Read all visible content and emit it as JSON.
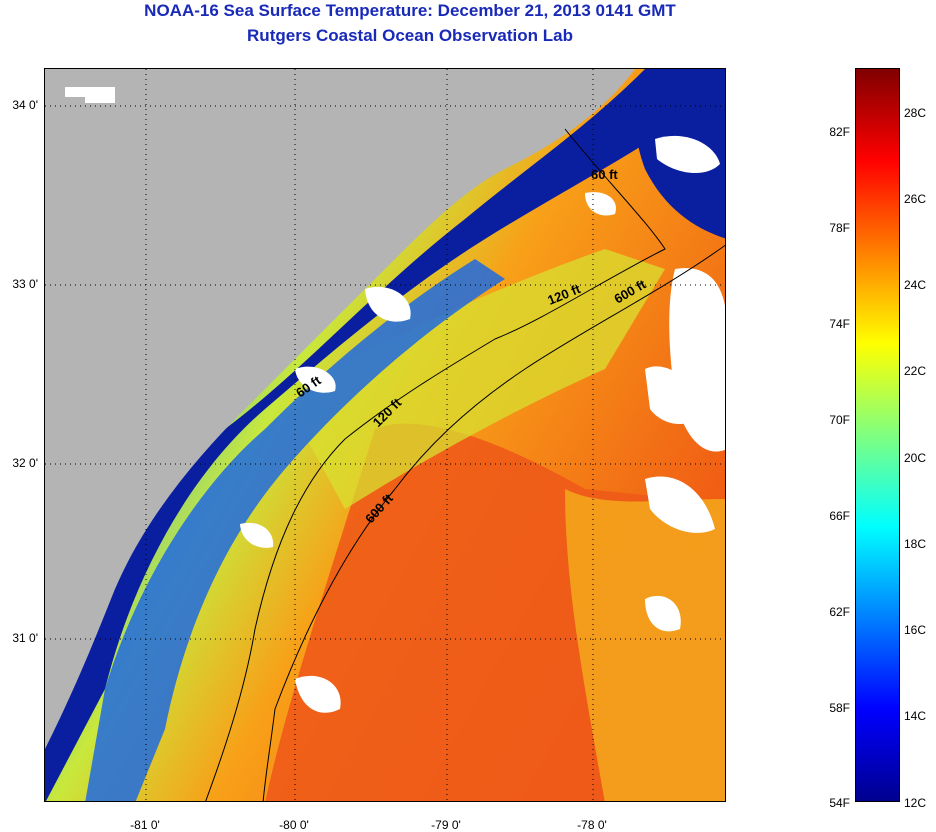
{
  "title": {
    "line1": "NOAA-16 Sea Surface Temperature:  December 21, 2013 0141 GMT",
    "line2": "Rutgers Coastal Ocean Observation Lab"
  },
  "map": {
    "lat_labels": [
      "34 0'",
      "33 0'",
      "32 0'",
      "31 0'"
    ],
    "lon_labels": [
      "-81 0'",
      "-80 0'",
      "-79 0'",
      "-78 0'"
    ],
    "contour_labels": [
      "60 ft",
      "120 ft",
      "600 ft",
      "60 ft",
      "120 ft",
      "600 ft"
    ],
    "colors": {
      "land": "#b4b4b4",
      "cloud": "#ffffff",
      "cold_water": "#0a1ea0"
    }
  },
  "colorbar": {
    "f_labels": [
      "82F",
      "78F",
      "74F",
      "70F",
      "66F",
      "62F",
      "58F",
      "54F"
    ],
    "c_labels": [
      "28C",
      "26C",
      "24C",
      "22C",
      "20C",
      "18C",
      "16C",
      "14C",
      "12C"
    ],
    "range_f": [
      54,
      84.5
    ],
    "colormap": "jet"
  }
}
